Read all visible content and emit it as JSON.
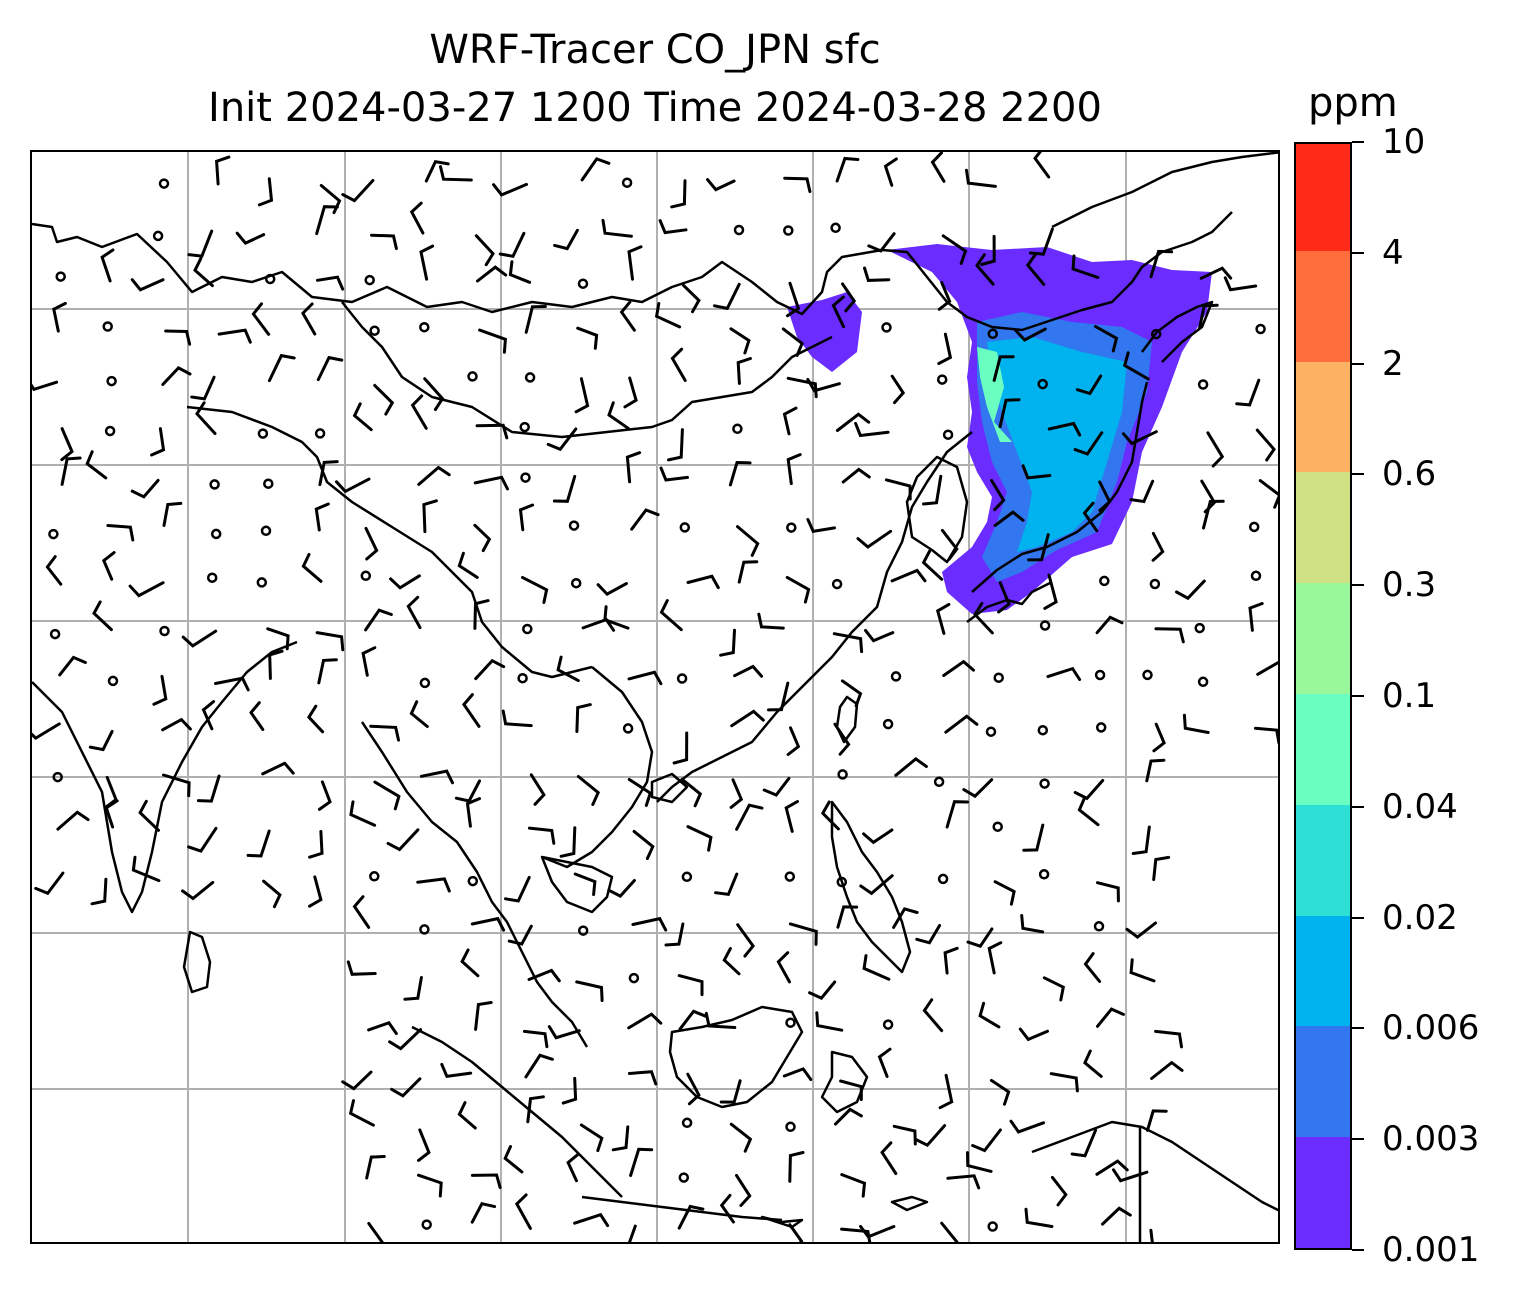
{
  "title": {
    "line1": "WRF-Tracer CO_JPN sfc",
    "line2": "Init 2024-03-27 1200 Time 2024-03-28 2200"
  },
  "colorbar": {
    "unit": "ppm",
    "labels": [
      "0.001",
      "0.003",
      "0.006",
      "0.02",
      "0.04",
      "0.1",
      "0.3",
      "0.6",
      "2",
      "4",
      "10"
    ],
    "colors": [
      "#6a2cff",
      "#3277f0",
      "#00b3ee",
      "#2edfd5",
      "#6affc0",
      "#99f99a",
      "#cfe183",
      "#fcb262",
      "#ff6e3c",
      "#ff2a18"
    ]
  },
  "map": {
    "gridlines": true,
    "gridline_color": "#b0b0b0",
    "coastline_color": "#000000",
    "tracer_colors": {
      "low": "#6a2cff",
      "mid": "#3277f0",
      "high": "#00b3ee",
      "peak": "#6affc0"
    },
    "wind_barbs": "black",
    "calm_marker": "open circle"
  }
}
